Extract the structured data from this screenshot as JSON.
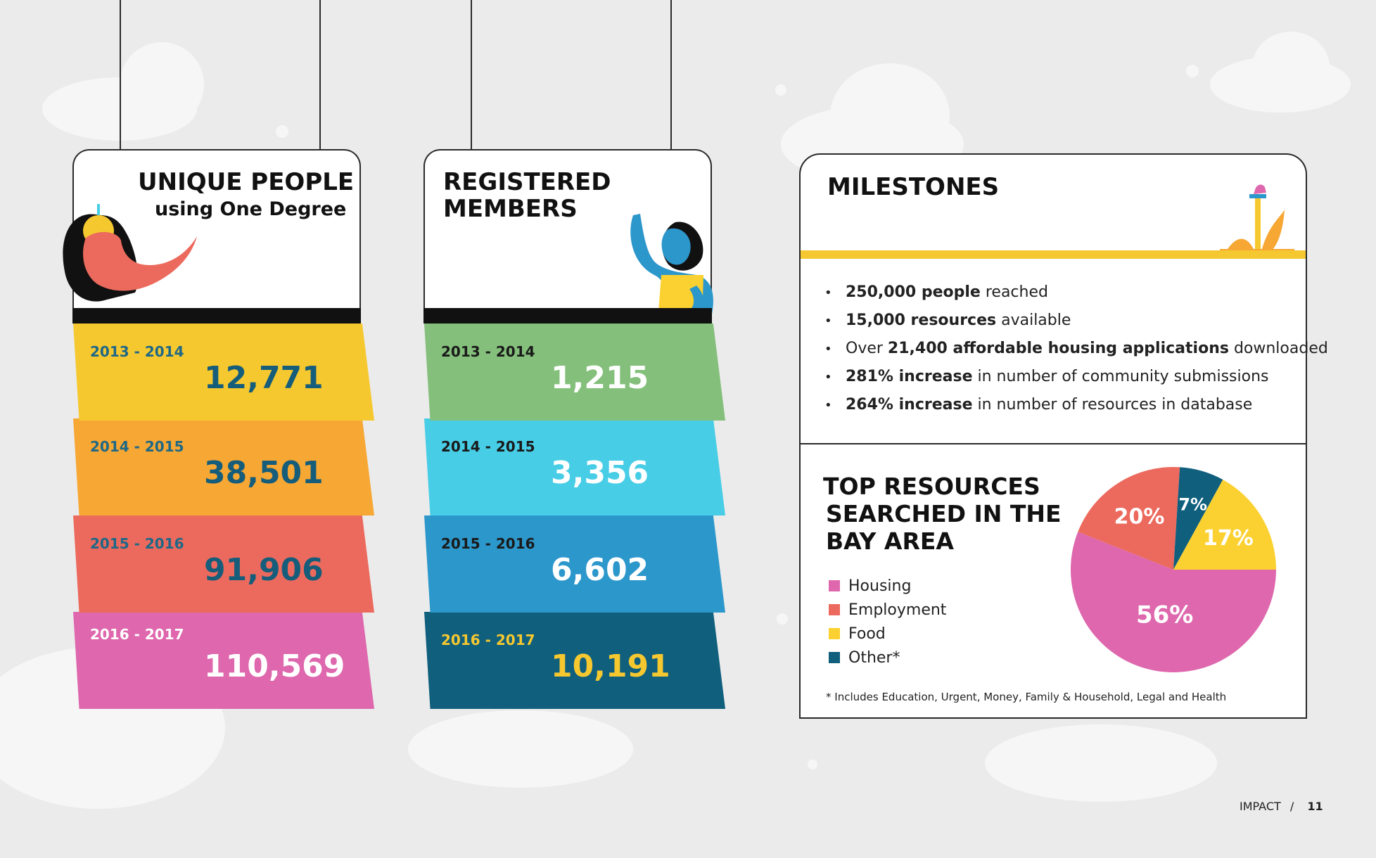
{
  "sign_unique": {
    "title": "UNIQUE PEOPLE",
    "subtitle": "using One Degree",
    "rows": [
      {
        "year": "2013 - 2014",
        "value": "12,771",
        "bg": "#f6c830",
        "yearColor": "#1e6886",
        "valueColor": "#155d7a"
      },
      {
        "year": "2014 - 2015",
        "value": "38,501",
        "bg": "#f7a733",
        "yearColor": "#1e6886",
        "valueColor": "#155d7a"
      },
      {
        "year": "2015 - 2016",
        "value": "91,906",
        "bg": "#ec6a5d",
        "yearColor": "#1e6886",
        "valueColor": "#155d7a"
      },
      {
        "year": "2016 - 2017",
        "value": "110,569",
        "bg": "#de67ad",
        "yearColor": "#ffffff",
        "valueColor": "#ffffff"
      }
    ]
  },
  "sign_members": {
    "title_line1": "REGISTERED",
    "title_line2": "MEMBERS",
    "rows": [
      {
        "year": "2013 - 2014",
        "value": "1,215",
        "bg": "#84c07b",
        "yearColor": "#1a1a1a",
        "valueColor": "#ffffff"
      },
      {
        "year": "2014 - 2015",
        "value": "3,356",
        "bg": "#47cde6",
        "yearColor": "#1a1a1a",
        "valueColor": "#ffffff"
      },
      {
        "year": "2015 - 2016",
        "value": "6,602",
        "bg": "#2c97cb",
        "yearColor": "#1a1a1a",
        "valueColor": "#ffffff"
      },
      {
        "year": "2016 - 2017",
        "value": "10,191",
        "bg": "#0f5f7d",
        "yearColor": "#f6c830",
        "valueColor": "#f6c830"
      }
    ]
  },
  "milestones": {
    "title": "MILESTONES",
    "items": [
      {
        "bold": "250,000 people",
        "rest": " reached"
      },
      {
        "bold": "15,000 resources",
        "rest": " available"
      },
      {
        "pre": "Over ",
        "bold": "21,400 affordable housing applications",
        "rest": " downloaded"
      },
      {
        "bold": "281% increase",
        "rest": " in number of community submissions"
      },
      {
        "bold": "264% increase",
        "rest": " in number of resources in database"
      }
    ]
  },
  "chart_data": {
    "type": "pie",
    "title_lines": [
      "TOP RESOURCES",
      "SEARCHED IN THE",
      "BAY AREA"
    ],
    "legend": [
      {
        "label": "Housing",
        "color": "#de67ad"
      },
      {
        "label": "Employment",
        "color": "#ec6a5d"
      },
      {
        "label": "Food",
        "color": "#fbd131"
      },
      {
        "label": "Other*",
        "color": "#0f5f7d"
      }
    ],
    "slices": [
      {
        "label": "Housing",
        "value": 56,
        "display": "56%",
        "color": "#de67ad"
      },
      {
        "label": "Employment",
        "value": 20,
        "display": "20%",
        "color": "#ec6a5d"
      },
      {
        "label": "Other*",
        "value": 7,
        "display": "7%",
        "color": "#0f5f7d"
      },
      {
        "label": "Food",
        "value": 17,
        "display": "17%",
        "color": "#fbd131"
      }
    ],
    "footnote": "* Includes Education, Urgent, Money, Family & Household, Legal and Health"
  },
  "footer": {
    "section": "IMPACT",
    "separator": "/",
    "page": "11"
  }
}
